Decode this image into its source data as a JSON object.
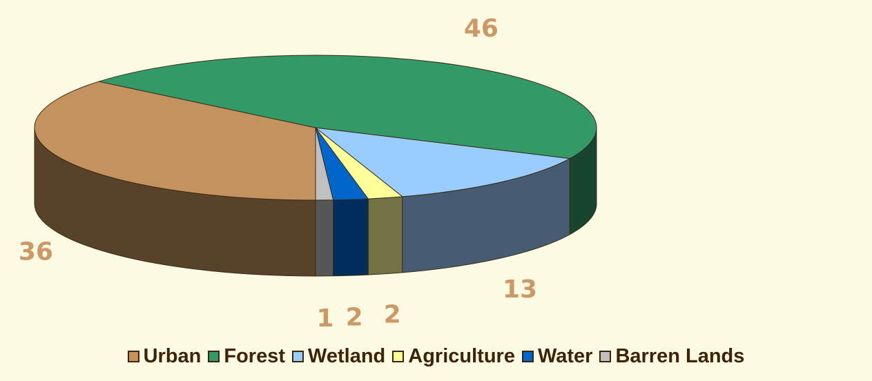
{
  "chart_data": {
    "type": "pie3d",
    "categories": [
      "Urban",
      "Forest",
      "Wetland",
      "Agriculture",
      "Water",
      "Barren Lands"
    ],
    "values": [
      36,
      46,
      13,
      2,
      2,
      1
    ],
    "colors": [
      "#c4925e",
      "#339966",
      "#99ccff",
      "#ffff99",
      "#0066cc",
      "#c0c0c0"
    ],
    "legend": "bottom"
  }
}
